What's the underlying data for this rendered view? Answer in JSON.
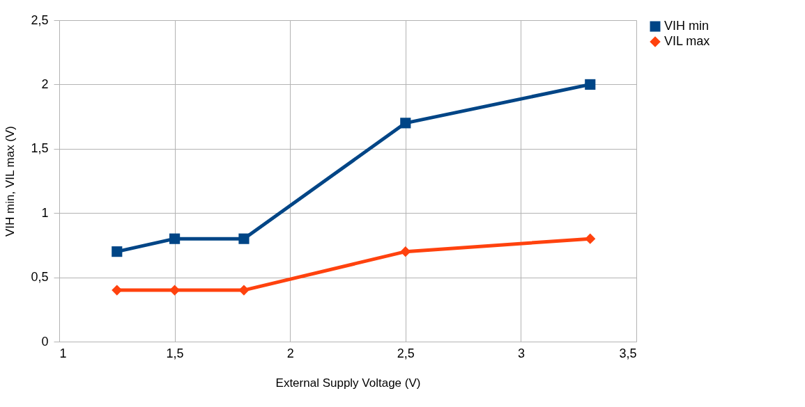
{
  "chart_data": {
    "type": "line",
    "xlabel": "External Supply Voltage (V)",
    "ylabel": "VIH min, VIL max (V)",
    "x": [
      1.25,
      1.5,
      1.8,
      2.5,
      3.3
    ],
    "series": [
      {
        "name": "VIH min",
        "color": "#004586",
        "values": [
          0.7,
          0.8,
          0.8,
          1.7,
          2.0
        ],
        "marker": "square"
      },
      {
        "name": "VIL max",
        "color": "#ff420e",
        "values": [
          0.4,
          0.4,
          0.4,
          0.7,
          0.8
        ],
        "marker": "diamond"
      }
    ],
    "xlim": [
      1,
      3.5
    ],
    "xticks": [
      1,
      {
        "value": 1.5,
        "label": "1,5"
      },
      2,
      {
        "value": 2.5,
        "label": "2,5"
      },
      3,
      {
        "value": 3.5,
        "label": "3,5"
      }
    ],
    "ylim": [
      0,
      2.5
    ],
    "yticks": [
      0,
      {
        "value": 0.5,
        "label": "0,5"
      },
      1,
      {
        "value": 1.5,
        "label": "1,5"
      },
      2,
      {
        "value": 2.5,
        "label": "2,5"
      }
    ],
    "grid": true,
    "legend": "right",
    "line_style": "solid"
  }
}
